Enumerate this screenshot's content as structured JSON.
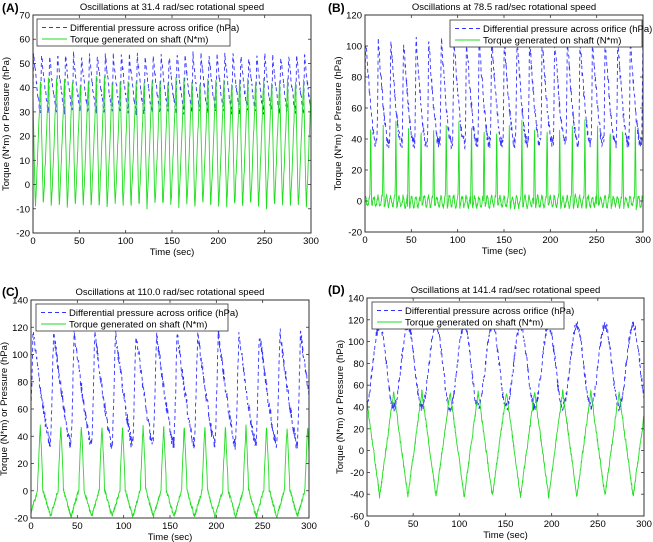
{
  "figure": {
    "panels": [
      "A",
      "B",
      "C",
      "D"
    ]
  },
  "chart_data": [
    {
      "type": "line",
      "panel_label": "(A)",
      "title": "Oscillations at 31.4 rad/sec rotational speed",
      "xlabel": "Time (sec)",
      "ylabel": "Torque (N*m) or Pressure (hPa)",
      "xlim": [
        0,
        300
      ],
      "ylim": [
        -20,
        70
      ],
      "xticks": [
        0,
        50,
        100,
        150,
        200,
        250,
        300
      ],
      "yticks": [
        -20,
        -10,
        0,
        10,
        20,
        30,
        40,
        50,
        60,
        70
      ],
      "grid": false,
      "legend_position": "top-left",
      "series": [
        {
          "name": "Differential pressure across orifice (hPa)",
          "style": "dashed",
          "color": "#3333ff",
          "period_sec": 8.6,
          "min": 30,
          "max": 54,
          "peak_max": 62
        },
        {
          "name": "Torque generated on shaft (N*m)",
          "style": "solid",
          "color": "#22dd22",
          "period_sec": 8.6,
          "min": -9,
          "max": 44
        }
      ]
    },
    {
      "type": "line",
      "panel_label": "(B)",
      "title": "Oscillations at 78.5 rad/sec rotational speed",
      "xlabel": "Time (sec)",
      "ylabel": "Torque (N*m) or Pressure (hPa)",
      "xlim": [
        0,
        300
      ],
      "ylim": [
        -20,
        120
      ],
      "xticks": [
        0,
        50,
        100,
        150,
        200,
        250,
        300
      ],
      "yticks": [
        -20,
        0,
        20,
        40,
        60,
        80,
        100,
        120
      ],
      "grid": false,
      "legend_position": "top-right",
      "series": [
        {
          "name": "Differential pressure across orifice (hPa)",
          "style": "dashed",
          "color": "#3333ff",
          "period_sec": 13.6,
          "min": 38,
          "max": 105
        },
        {
          "name": "Torque generated on shaft (N*m)",
          "style": "solid",
          "color": "#22dd22",
          "period_sec": 13.6,
          "min": -5,
          "max": 52
        }
      ]
    },
    {
      "type": "line",
      "panel_label": "(C)",
      "title": "Oscillations at 110.0 rad/sec rotational speed",
      "xlabel": "Time (sec)",
      "ylabel": "Torque (N*m) or Pressure (hPa)",
      "xlim": [
        0,
        300
      ],
      "ylim": [
        -20,
        140
      ],
      "xticks": [
        0,
        50,
        100,
        150,
        200,
        250,
        300
      ],
      "yticks": [
        -20,
        0,
        20,
        40,
        60,
        80,
        100,
        120,
        140
      ],
      "grid": false,
      "legend_position": "top-left",
      "series": [
        {
          "name": "Differential pressure across orifice (hPa)",
          "style": "dashed",
          "color": "#3333ff",
          "period_sec": 22.2,
          "min": 35,
          "max": 117
        },
        {
          "name": "Torque generated on shaft (N*m)",
          "style": "solid",
          "color": "#22dd22",
          "period_sec": 22.2,
          "min": -19,
          "max": 48
        }
      ]
    },
    {
      "type": "line",
      "panel_label": "(D)",
      "title": "Oscillations at 141.4 rad/sec rotational speed",
      "xlabel": "Time (sec)",
      "ylabel": "Torque (N*m) or Pressure (hPa)",
      "xlim": [
        0,
        300
      ],
      "ylim": [
        -60,
        140
      ],
      "xticks": [
        0,
        50,
        100,
        150,
        200,
        250,
        300
      ],
      "yticks": [
        -60,
        -40,
        -20,
        0,
        20,
        40,
        60,
        80,
        100,
        120,
        140
      ],
      "grid": false,
      "legend_position": "top-left",
      "series": [
        {
          "name": "Differential pressure across orifice (hPa)",
          "style": "dashed",
          "color": "#3333ff",
          "period_sec": 30.5,
          "min": 40,
          "max": 115
        },
        {
          "name": "Torque generated on shaft (N*m)",
          "style": "solid",
          "color": "#22dd22",
          "period_sec": 30.5,
          "min": -42,
          "max": 54
        }
      ]
    }
  ]
}
